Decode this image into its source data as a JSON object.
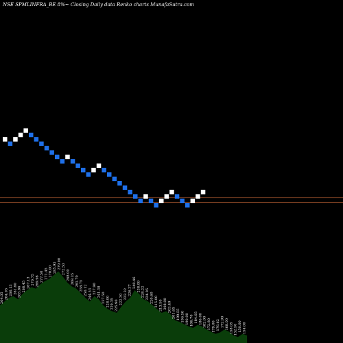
{
  "header": {
    "title": "NSE SPMLINFRA_BE 8%~  Closing Daily data  Renko  charts MunafaSutra.com"
  },
  "colors": {
    "background": "#000000",
    "up_brick": "#ffffff",
    "down_brick": "#1e6fe8",
    "reference_line": "#a0522d",
    "volume_area": "#0a3d0a"
  },
  "chart_data": {
    "type": "renko",
    "brick_direction": [
      "up",
      "down",
      "up",
      "up",
      "up",
      "down",
      "down",
      "down",
      "down",
      "down",
      "down",
      "down",
      "up",
      "down",
      "down",
      "down",
      "down",
      "up",
      "up",
      "down",
      "down",
      "down",
      "down",
      "down",
      "down",
      "down",
      "down",
      "up",
      "down",
      "down",
      "up",
      "up",
      "up",
      "down",
      "down",
      "down",
      "up",
      "up",
      "up"
    ],
    "brick_level": [
      0,
      -1,
      0,
      1,
      2,
      1,
      0,
      -1,
      -2,
      -3,
      -4,
      -5,
      -4,
      -5,
      -6,
      -7,
      -8,
      -7,
      -6,
      -7,
      -8,
      -9,
      -10,
      -11,
      -12,
      -13,
      -14,
      -13,
      -14,
      -15,
      -14,
      -13,
      -12,
      -13,
      -14,
      -15,
      -14,
      -13,
      -12
    ],
    "reference_lines_level": [
      -13.2,
      -14.4
    ],
    "volume_profile": [
      0.5,
      0.55,
      0.6,
      0.62,
      0.58,
      0.65,
      0.7,
      0.74,
      0.72,
      0.78,
      0.82,
      0.85,
      0.9,
      0.95,
      0.88,
      0.8,
      0.75,
      0.72,
      0.66,
      0.6,
      0.55,
      0.62,
      0.58,
      0.5,
      0.45,
      0.42,
      0.4,
      0.48,
      0.55,
      0.6,
      0.7,
      0.65,
      0.58,
      0.55,
      0.5,
      0.45,
      0.4,
      0.42,
      0.38,
      0.3,
      0.28,
      0.25,
      0.22,
      0.2,
      0.24,
      0.22,
      0.18,
      0.15,
      0.12,
      0.14,
      0.18,
      0.15,
      0.1,
      0.08,
      0.12,
      0.1
    ],
    "volume_labels": [
      "264.05",
      "264.05",
      "266.13",
      "261.60",
      "265.86",
      "268.45",
      "267.13",
      "270.75",
      "269.98",
      "277.50",
      "271.45",
      "270.00",
      "285.95",
      "279.00",
      "272.50",
      "268.00",
      "268.35",
      "261.70",
      "258.75",
      "250.12",
      "244.53",
      "237.90",
      "241.38",
      "237.50",
      "228.00",
      "229.35",
      "225.90",
      "222.30",
      "222.32",
      "226.37",
      "240.46",
      "238.09",
      "228.22",
      "224.05",
      "220.60",
      "215.00",
      "213.50",
      "208.00",
      "203.40",
      "201.65",
      "199.55",
      "196.50",
      "190.00",
      "186.70",
      "184.05",
      "186.00",
      "182.00",
      "172.80",
      "179.00",
      "176.62",
      "172.90",
      "168.00",
      "158.05",
      "152.50",
      "150.00",
      "154.00"
    ]
  }
}
